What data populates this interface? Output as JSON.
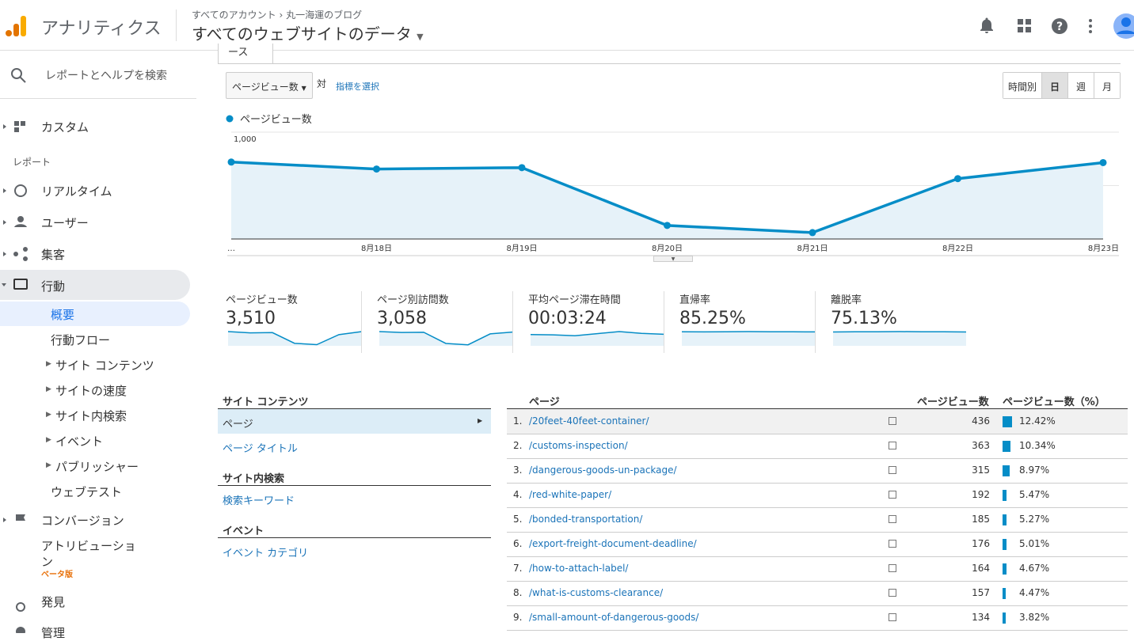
{
  "header": {
    "product": "アナリティクス",
    "breadcrumb": [
      "すべてのアカウント",
      "丸一海運のブログ"
    ],
    "property": "すべてのウェブサイトのデータ"
  },
  "sidebar": {
    "search": "レポートとヘルプを検索",
    "custom": "カスタム",
    "section": "レポート",
    "items": [
      "リアルタイム",
      "ユーザー",
      "集客",
      "行動"
    ],
    "behavior": [
      "概要",
      "行動フロー",
      "サイト コンテンツ",
      "サイトの速度",
      "サイト内検索",
      "イベント",
      "パブリッシャー",
      "ウェブテスト"
    ],
    "conversion": "コンバージョン",
    "attribution": "アトリビューショ",
    "attribution_wrap": "ン",
    "beta": "ベータ版",
    "discover": "発見",
    "admin": "管理"
  },
  "tab": "ース",
  "controls": {
    "metric": "ページビュー数",
    "versus": "対",
    "select_metric": "指標を選択",
    "periods": [
      "時間別",
      "日",
      "週",
      "月"
    ]
  },
  "chart": {
    "type": "line",
    "categories": [
      "…",
      "8月18日",
      "8月19日",
      "8月20日",
      "8月21日",
      "8月22日",
      "8月23日"
    ],
    "series": [
      {
        "name": "ページビュー数",
        "color": "#058dc7",
        "values": [
          720,
          655,
          668,
          127,
          60,
          565,
          715
        ]
      }
    ],
    "ylim": [
      0,
      1000
    ],
    "yticks": [
      {
        "value": 1000,
        "label": "1,000"
      },
      500
    ]
  },
  "metrics": [
    {
      "title": "ページビュー数",
      "value": "3,510",
      "trend": [
        720,
        655,
        668,
        127,
        60,
        565,
        715
      ]
    },
    {
      "title": "ページ別訪問数",
      "value": "3,058",
      "trend": [
        620,
        580,
        590,
        105,
        45,
        520,
        598
      ]
    },
    {
      "title": "平均ページ滞在時間",
      "value": "00:03:24",
      "trend": [
        190,
        185,
        170,
        205,
        240,
        210,
        195
      ]
    },
    {
      "title": "直帰率",
      "value": "85.25%",
      "trend": [
        85,
        84,
        85,
        86,
        85,
        85,
        84
      ]
    },
    {
      "title": "離脱率",
      "value": "75.13%",
      "trend": [
        74,
        75,
        75,
        76,
        75,
        75,
        74
      ]
    }
  ],
  "dimensions": {
    "groups": [
      {
        "title": "サイト コンテンツ",
        "items": [
          "ページ",
          "ページ タイトル"
        ]
      },
      {
        "title": "サイト内検索",
        "items": [
          "検索キーワード"
        ]
      },
      {
        "title": "イベント",
        "items": [
          "イベント カテゴリ"
        ]
      }
    ]
  },
  "table": {
    "headers": [
      "ページ",
      "ページビュー数",
      "ページビュー数（%）"
    ],
    "rows": [
      {
        "rank": "1.",
        "page": "/20feet-40feet-container/",
        "views": 436,
        "pct": 12.42,
        "pct_label": "12.42%"
      },
      {
        "rank": "2.",
        "page": "/customs-inspection/",
        "views": 363,
        "pct": 10.34,
        "pct_label": "10.34%"
      },
      {
        "rank": "3.",
        "page": "/dangerous-goods-un-package/",
        "views": 315,
        "pct": 8.97,
        "pct_label": "8.97%"
      },
      {
        "rank": "4.",
        "page": "/red-white-paper/",
        "views": 192,
        "pct": 5.47,
        "pct_label": "5.47%"
      },
      {
        "rank": "5.",
        "page": "/bonded-transportation/",
        "views": 185,
        "pct": 5.27,
        "pct_label": "5.27%"
      },
      {
        "rank": "6.",
        "page": "/export-freight-document-deadline/",
        "views": 176,
        "pct": 5.01,
        "pct_label": "5.01%"
      },
      {
        "rank": "7.",
        "page": "/how-to-attach-label/",
        "views": 164,
        "pct": 4.67,
        "pct_label": "4.67%"
      },
      {
        "rank": "8.",
        "page": "/what-is-customs-clearance/",
        "views": 157,
        "pct": 4.47,
        "pct_label": "4.47%"
      },
      {
        "rank": "9.",
        "page": "/small-amount-of-dangerous-goods/",
        "views": 134,
        "pct": 3.82,
        "pct_label": "3.82%"
      }
    ]
  }
}
